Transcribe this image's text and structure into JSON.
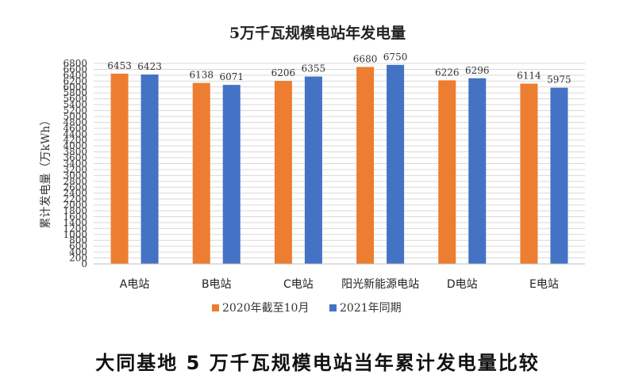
{
  "chart_data": {
    "type": "bar",
    "title": "5万千瓦规模电站年发电量",
    "ylabel": "累计发电量（万kWh）",
    "xlabel": "",
    "categories": [
      "A电站",
      "B电站",
      "C电站",
      "阳光新能源电站",
      "D电站",
      "E电站"
    ],
    "series": [
      {
        "name": "2020年截至10月",
        "color": "#ED7D31",
        "values": [
          6453,
          6138,
          6206,
          6680,
          6226,
          6114
        ]
      },
      {
        "name": "2021年同期",
        "color": "#4472C4",
        "values": [
          6423,
          6071,
          6355,
          6750,
          6296,
          5975
        ]
      }
    ],
    "ylim": [
      0,
      6800
    ],
    "ytick_step": 200,
    "yticks": [
      "0",
      "200",
      "400",
      "600",
      "800",
      "1000",
      "1200",
      "1400",
      "1600",
      "1800",
      "2000",
      "2200",
      "2400",
      "2600",
      "2800",
      "3000",
      "3200",
      "3400",
      "3600",
      "3800",
      "4000",
      "4200",
      "4400",
      "4600",
      "4800",
      "5000",
      "5200",
      "5400",
      "5600",
      "5800",
      "6000",
      "6200",
      "6400",
      "6600",
      "6800"
    ],
    "grid": true,
    "legend_position": "bottom"
  },
  "caption": "大同基地 5 万千瓦规模电站当年累计发电量比较"
}
